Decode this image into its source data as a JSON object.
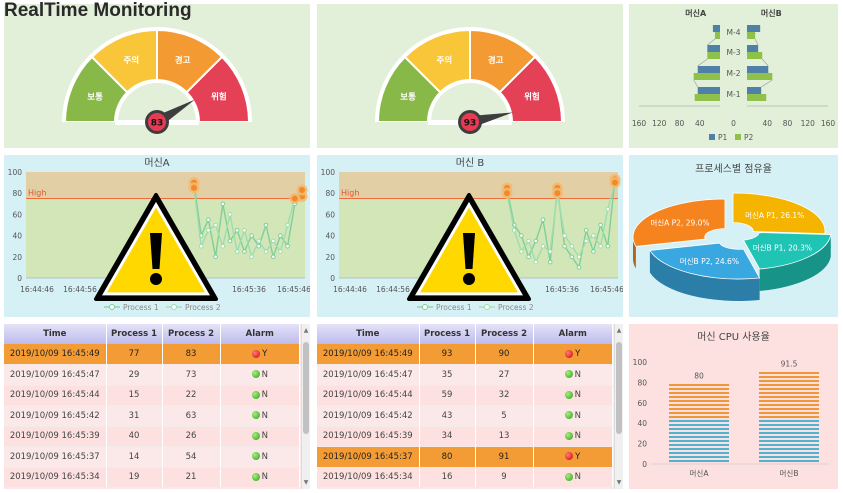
{
  "app_title": "RealTime Monitoring",
  "gauges": [
    {
      "labels": [
        "보통",
        "주의",
        "경고",
        "위험"
      ],
      "value": 83
    },
    {
      "labels": [
        "보통",
        "주의",
        "경고",
        "위험"
      ],
      "value": 93
    }
  ],
  "pyramid": {
    "left_title": "머신A",
    "right_title": "머신B",
    "rows": [
      "M-4",
      "M-3",
      "M-2",
      "M-1"
    ],
    "x_ticks": [
      "160",
      "120",
      "80",
      "40",
      "0",
      "40",
      "80",
      "120",
      "160"
    ],
    "legend": [
      "P1",
      "P2"
    ],
    "colors": {
      "P1": "#4f80a8",
      "P2": "#8ec04a"
    }
  },
  "lines": [
    {
      "title": "머신A",
      "high_label": "High",
      "high_value": 75,
      "y_ticks": [
        "0",
        "20",
        "40",
        "60",
        "80",
        "100"
      ],
      "x_ticks": [
        "16:44:46",
        "16:44:56",
        "16:45:36",
        "16:45:46"
      ],
      "legend": [
        "Process 1",
        "Process 2"
      ]
    },
    {
      "title": "머신 B",
      "high_label": "High",
      "high_value": 75,
      "y_ticks": [
        "0",
        "20",
        "40",
        "60",
        "80",
        "100"
      ],
      "x_ticks": [
        "16:44:46",
        "16:44:56",
        "16:45:36",
        "16:45:46"
      ],
      "legend": [
        "Process 1",
        "Process 2"
      ]
    }
  ],
  "pie": {
    "title": "프로세스별 점유율",
    "slices": [
      {
        "label": "머신A P1, 26.1%",
        "value": 26.1,
        "color": "#f4b400"
      },
      {
        "label": "머신B P1, 20.3%",
        "value": 20.3,
        "color": "#20c4b4"
      },
      {
        "label": "머신B P2, 24.6%",
        "value": 24.6,
        "color": "#3aa8e0"
      },
      {
        "label": "머신A P2, 29.0%",
        "value": 29.0,
        "color": "#f5841f"
      }
    ]
  },
  "tables": [
    {
      "headers": [
        "Time",
        "Process 1",
        "Process 2",
        "Alarm"
      ],
      "rows": [
        {
          "time": "2019/10/09 16:45:49",
          "p1": "77",
          "p2": "83",
          "alarm": "Y"
        },
        {
          "time": "2019/10/09 16:45:47",
          "p1": "29",
          "p2": "73",
          "alarm": "N"
        },
        {
          "time": "2019/10/09 16:45:44",
          "p1": "15",
          "p2": "22",
          "alarm": "N"
        },
        {
          "time": "2019/10/09 16:45:42",
          "p1": "31",
          "p2": "63",
          "alarm": "N"
        },
        {
          "time": "2019/10/09 16:45:39",
          "p1": "40",
          "p2": "26",
          "alarm": "N"
        },
        {
          "time": "2019/10/09 16:45:37",
          "p1": "14",
          "p2": "54",
          "alarm": "N"
        },
        {
          "time": "2019/10/09 16:45:34",
          "p1": "19",
          "p2": "21",
          "alarm": "N"
        }
      ]
    },
    {
      "headers": [
        "Time",
        "Process 1",
        "Process 2",
        "Alarm"
      ],
      "rows": [
        {
          "time": "2019/10/09 16:45:49",
          "p1": "93",
          "p2": "90",
          "alarm": "Y"
        },
        {
          "time": "2019/10/09 16:45:47",
          "p1": "35",
          "p2": "27",
          "alarm": "N"
        },
        {
          "time": "2019/10/09 16:45:44",
          "p1": "59",
          "p2": "32",
          "alarm": "N"
        },
        {
          "time": "2019/10/09 16:45:42",
          "p1": "43",
          "p2": "5",
          "alarm": "N"
        },
        {
          "time": "2019/10/09 16:45:39",
          "p1": "34",
          "p2": "13",
          "alarm": "N"
        },
        {
          "time": "2019/10/09 16:45:37",
          "p1": "80",
          "p2": "91",
          "alarm": "Y"
        },
        {
          "time": "2019/10/09 16:45:34",
          "p1": "16",
          "p2": "9",
          "alarm": "N"
        }
      ]
    }
  ],
  "cpu": {
    "title": "머신 CPU 사용율",
    "y_ticks": [
      "0",
      "20",
      "40",
      "60",
      "80",
      "100"
    ],
    "categories": [
      "머신A",
      "머신B"
    ],
    "values": [
      80,
      91.5
    ],
    "value_labels": [
      "80",
      "91.5"
    ]
  },
  "chart_data": [
    {
      "type": "bar",
      "subtype": "population-pyramid",
      "categories": [
        "M-4",
        "M-3",
        "M-2",
        "M-1"
      ],
      "series": [
        {
          "name": "P1",
          "group": "머신A",
          "values": [
            14,
            25,
            44,
            44
          ]
        },
        {
          "name": "P2",
          "group": "머신A",
          "values": [
            10,
            25,
            52,
            50
          ]
        },
        {
          "name": "P1",
          "group": "머신B",
          "values": [
            26,
            22,
            42,
            28
          ]
        },
        {
          "name": "P2",
          "group": "머신B",
          "values": [
            16,
            30,
            50,
            38
          ]
        }
      ],
      "xlim": [
        -160,
        160
      ]
    },
    {
      "type": "line",
      "title": "머신A",
      "ylim": [
        0,
        100
      ],
      "series": [
        {
          "name": "Process 1",
          "x": [
            0,
            1,
            2,
            3,
            4,
            5,
            6,
            7,
            8,
            9,
            10,
            11,
            12,
            13,
            14,
            15
          ],
          "values": [
            90,
            40,
            55,
            20,
            70,
            35,
            45,
            25,
            40,
            30,
            50,
            20,
            40,
            30,
            70,
            77
          ]
        },
        {
          "name": "Process 2",
          "x": [
            0,
            1,
            2,
            3,
            4,
            5,
            6,
            7,
            8,
            9,
            10,
            11,
            12,
            13,
            14,
            15
          ],
          "values": [
            85,
            30,
            45,
            50,
            30,
            60,
            25,
            45,
            20,
            35,
            25,
            35,
            25,
            50,
            75,
            83
          ]
        }
      ]
    },
    {
      "type": "line",
      "title": "머신 B",
      "ylim": [
        0,
        100
      ],
      "series": [
        {
          "name": "Process 1",
          "x": [
            0,
            1,
            2,
            3,
            4,
            5,
            6,
            7,
            8,
            9,
            10,
            11,
            12,
            13,
            14,
            15
          ],
          "values": [
            85,
            50,
            40,
            20,
            35,
            55,
            15,
            85,
            30,
            20,
            10,
            45,
            25,
            50,
            30,
            93
          ]
        },
        {
          "name": "Process 2",
          "x": [
            0,
            1,
            2,
            3,
            4,
            5,
            6,
            7,
            8,
            9,
            10,
            11,
            12,
            13,
            14,
            15
          ],
          "values": [
            80,
            45,
            25,
            35,
            15,
            30,
            25,
            80,
            40,
            30,
            20,
            35,
            40,
            30,
            65,
            90
          ]
        }
      ]
    },
    {
      "type": "pie",
      "title": "프로세스별 점유율",
      "categories": [
        "머신A P1",
        "머신B P1",
        "머신B P2",
        "머신A P2"
      ],
      "values": [
        26.1,
        20.3,
        24.6,
        29.0
      ]
    },
    {
      "type": "bar",
      "title": "머신 CPU 사용율",
      "categories": [
        "머신A",
        "머신B"
      ],
      "values": [
        80,
        91.5
      ],
      "ylim": [
        0,
        100
      ]
    }
  ]
}
